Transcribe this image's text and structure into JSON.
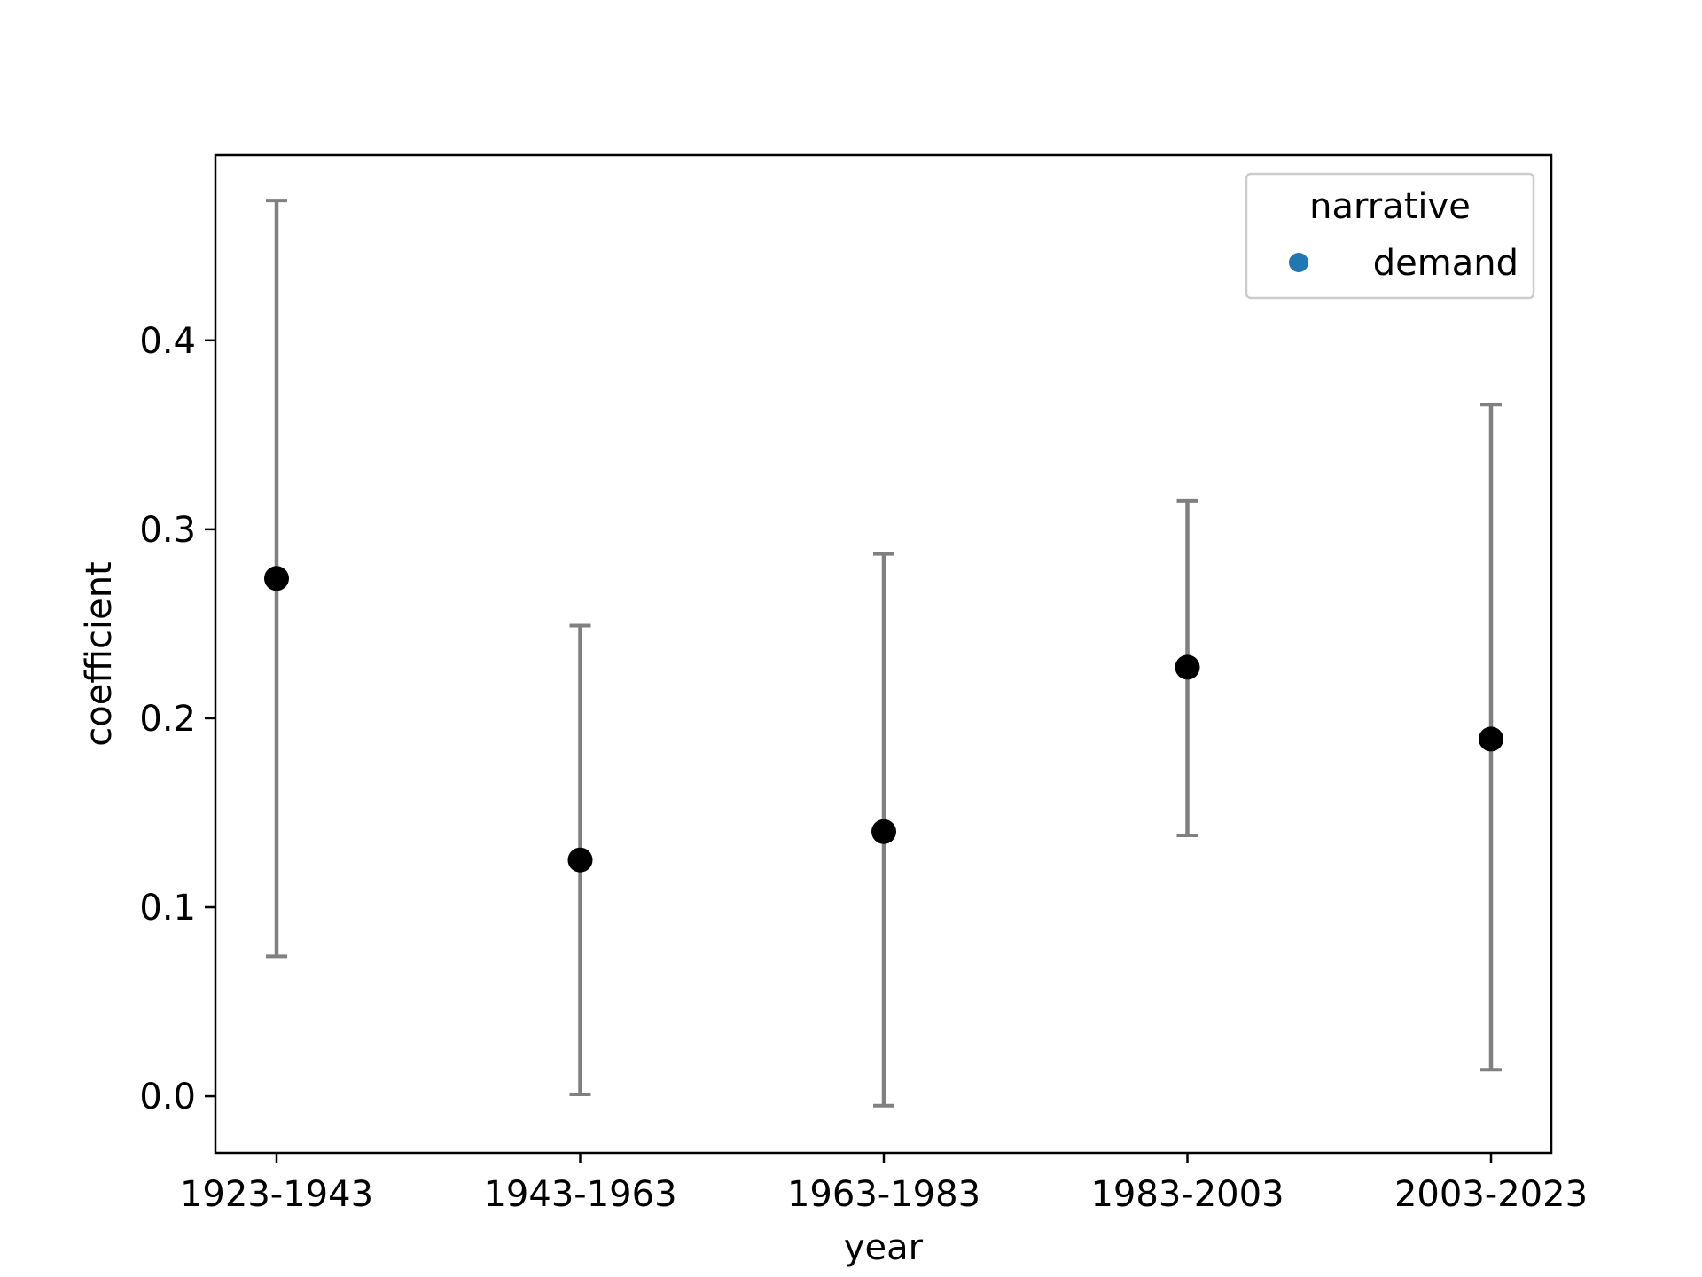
{
  "chart_data": {
    "type": "scatter",
    "title": "",
    "xlabel": "year",
    "ylabel": "coefficient",
    "categories": [
      "1923-1943",
      "1943-1963",
      "1963-1983",
      "1983-2003",
      "2003-2023"
    ],
    "series": [
      {
        "name": "demand",
        "values": [
          0.274,
          0.125,
          0.14,
          0.227,
          0.189
        ],
        "ci_low": [
          0.074,
          0.001,
          -0.005,
          0.138,
          0.014
        ],
        "ci_high": [
          0.474,
          0.249,
          0.287,
          0.315,
          0.366
        ]
      }
    ],
    "ylim": [
      -0.03,
      0.498
    ],
    "yticks": [
      0.0,
      0.1,
      0.2,
      0.3,
      0.4
    ],
    "ytick_labels": [
      "0.0",
      "0.1",
      "0.2",
      "0.3",
      "0.4"
    ],
    "grid": false,
    "legend": {
      "title": "narrative",
      "placement": "top-right",
      "entries": [
        "demand"
      ]
    },
    "colors": {
      "point": "#000000",
      "errorbar": "#808080",
      "legend_marker": "#1f77b4",
      "axes": "#000000",
      "legend_border": "#cccccc"
    }
  }
}
